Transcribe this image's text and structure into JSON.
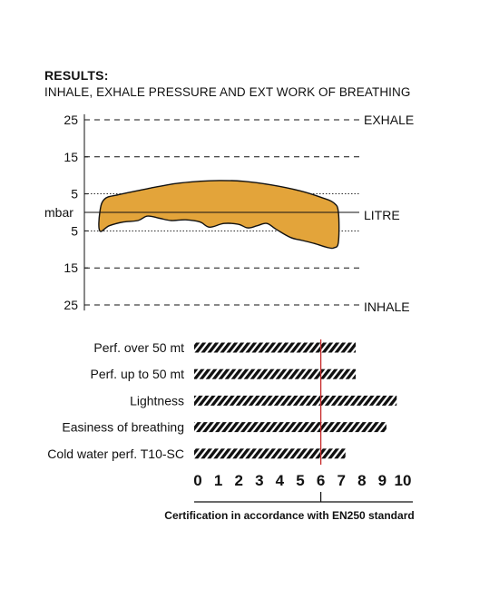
{
  "title": "RESULTS:",
  "subtitle": "INHALE, EXHALE PRESSURE AND EXT WORK OF BREATHING",
  "colors": {
    "curve_fill": "#E3A43A",
    "marker": "#C62828",
    "ink": "#111111"
  },
  "chart_data": [
    {
      "type": "area",
      "title": "",
      "ylabel": "mbar",
      "xlabel": "LITRE",
      "y_ticks": [
        "25",
        "15",
        "5",
        "mbar",
        "5",
        "15",
        "25"
      ],
      "y_tick_values": [
        25,
        15,
        5,
        0,
        -5,
        -15,
        -25
      ],
      "ylim": [
        -25,
        25
      ],
      "xlim": [
        0,
        1
      ],
      "annotations": {
        "top": "EXHALE",
        "zero": "LITRE",
        "bottom": "INHALE"
      },
      "grid": "dashed lines at ±15 and ±25, dotted lines at ±5",
      "exhale_curve": {
        "x": [
          0,
          0.02,
          0.08,
          0.2,
          0.32,
          0.42,
          0.5,
          0.6,
          0.72,
          0.84,
          0.93,
          0.98,
          1.0
        ],
        "y": [
          0,
          3.6,
          4.8,
          6.4,
          7.8,
          8.4,
          8.6,
          8.4,
          7.4,
          5.8,
          4.0,
          2.6,
          0
        ]
      },
      "inhale_curve": {
        "x": [
          0,
          0.04,
          0.1,
          0.16,
          0.2,
          0.25,
          0.3,
          0.36,
          0.42,
          0.46,
          0.52,
          0.58,
          0.62,
          0.66,
          0.7,
          0.74,
          0.8,
          0.85,
          0.9,
          0.95,
          0.98,
          1.0
        ],
        "y": [
          -5.0,
          -3.6,
          -2.6,
          -2.2,
          -1.0,
          -1.6,
          -2.2,
          -2.0,
          -2.6,
          -4.0,
          -3.0,
          -3.2,
          -4.2,
          -3.6,
          -3.0,
          -4.6,
          -6.8,
          -7.6,
          -8.4,
          -9.4,
          -9.6,
          -8.0
        ]
      }
    },
    {
      "type": "bar",
      "orientation": "horizontal",
      "title": "",
      "categories": [
        "Perf. over 50 mt",
        "Perf. up to 50 mt",
        "Lightness",
        "Easiness of breathing",
        "Cold water perf.  T10-SC"
      ],
      "values": [
        7.7,
        7.7,
        9.7,
        9.2,
        7.2
      ],
      "xlim": [
        0,
        10
      ],
      "x_ticks": [
        "0",
        "1",
        "2",
        "3",
        "4",
        "5",
        "6",
        "7",
        "8",
        "9",
        "10"
      ],
      "highlight_tick": "6",
      "reference_line": 6,
      "footnote": "Certification in accordance with EN250 standard"
    }
  ]
}
